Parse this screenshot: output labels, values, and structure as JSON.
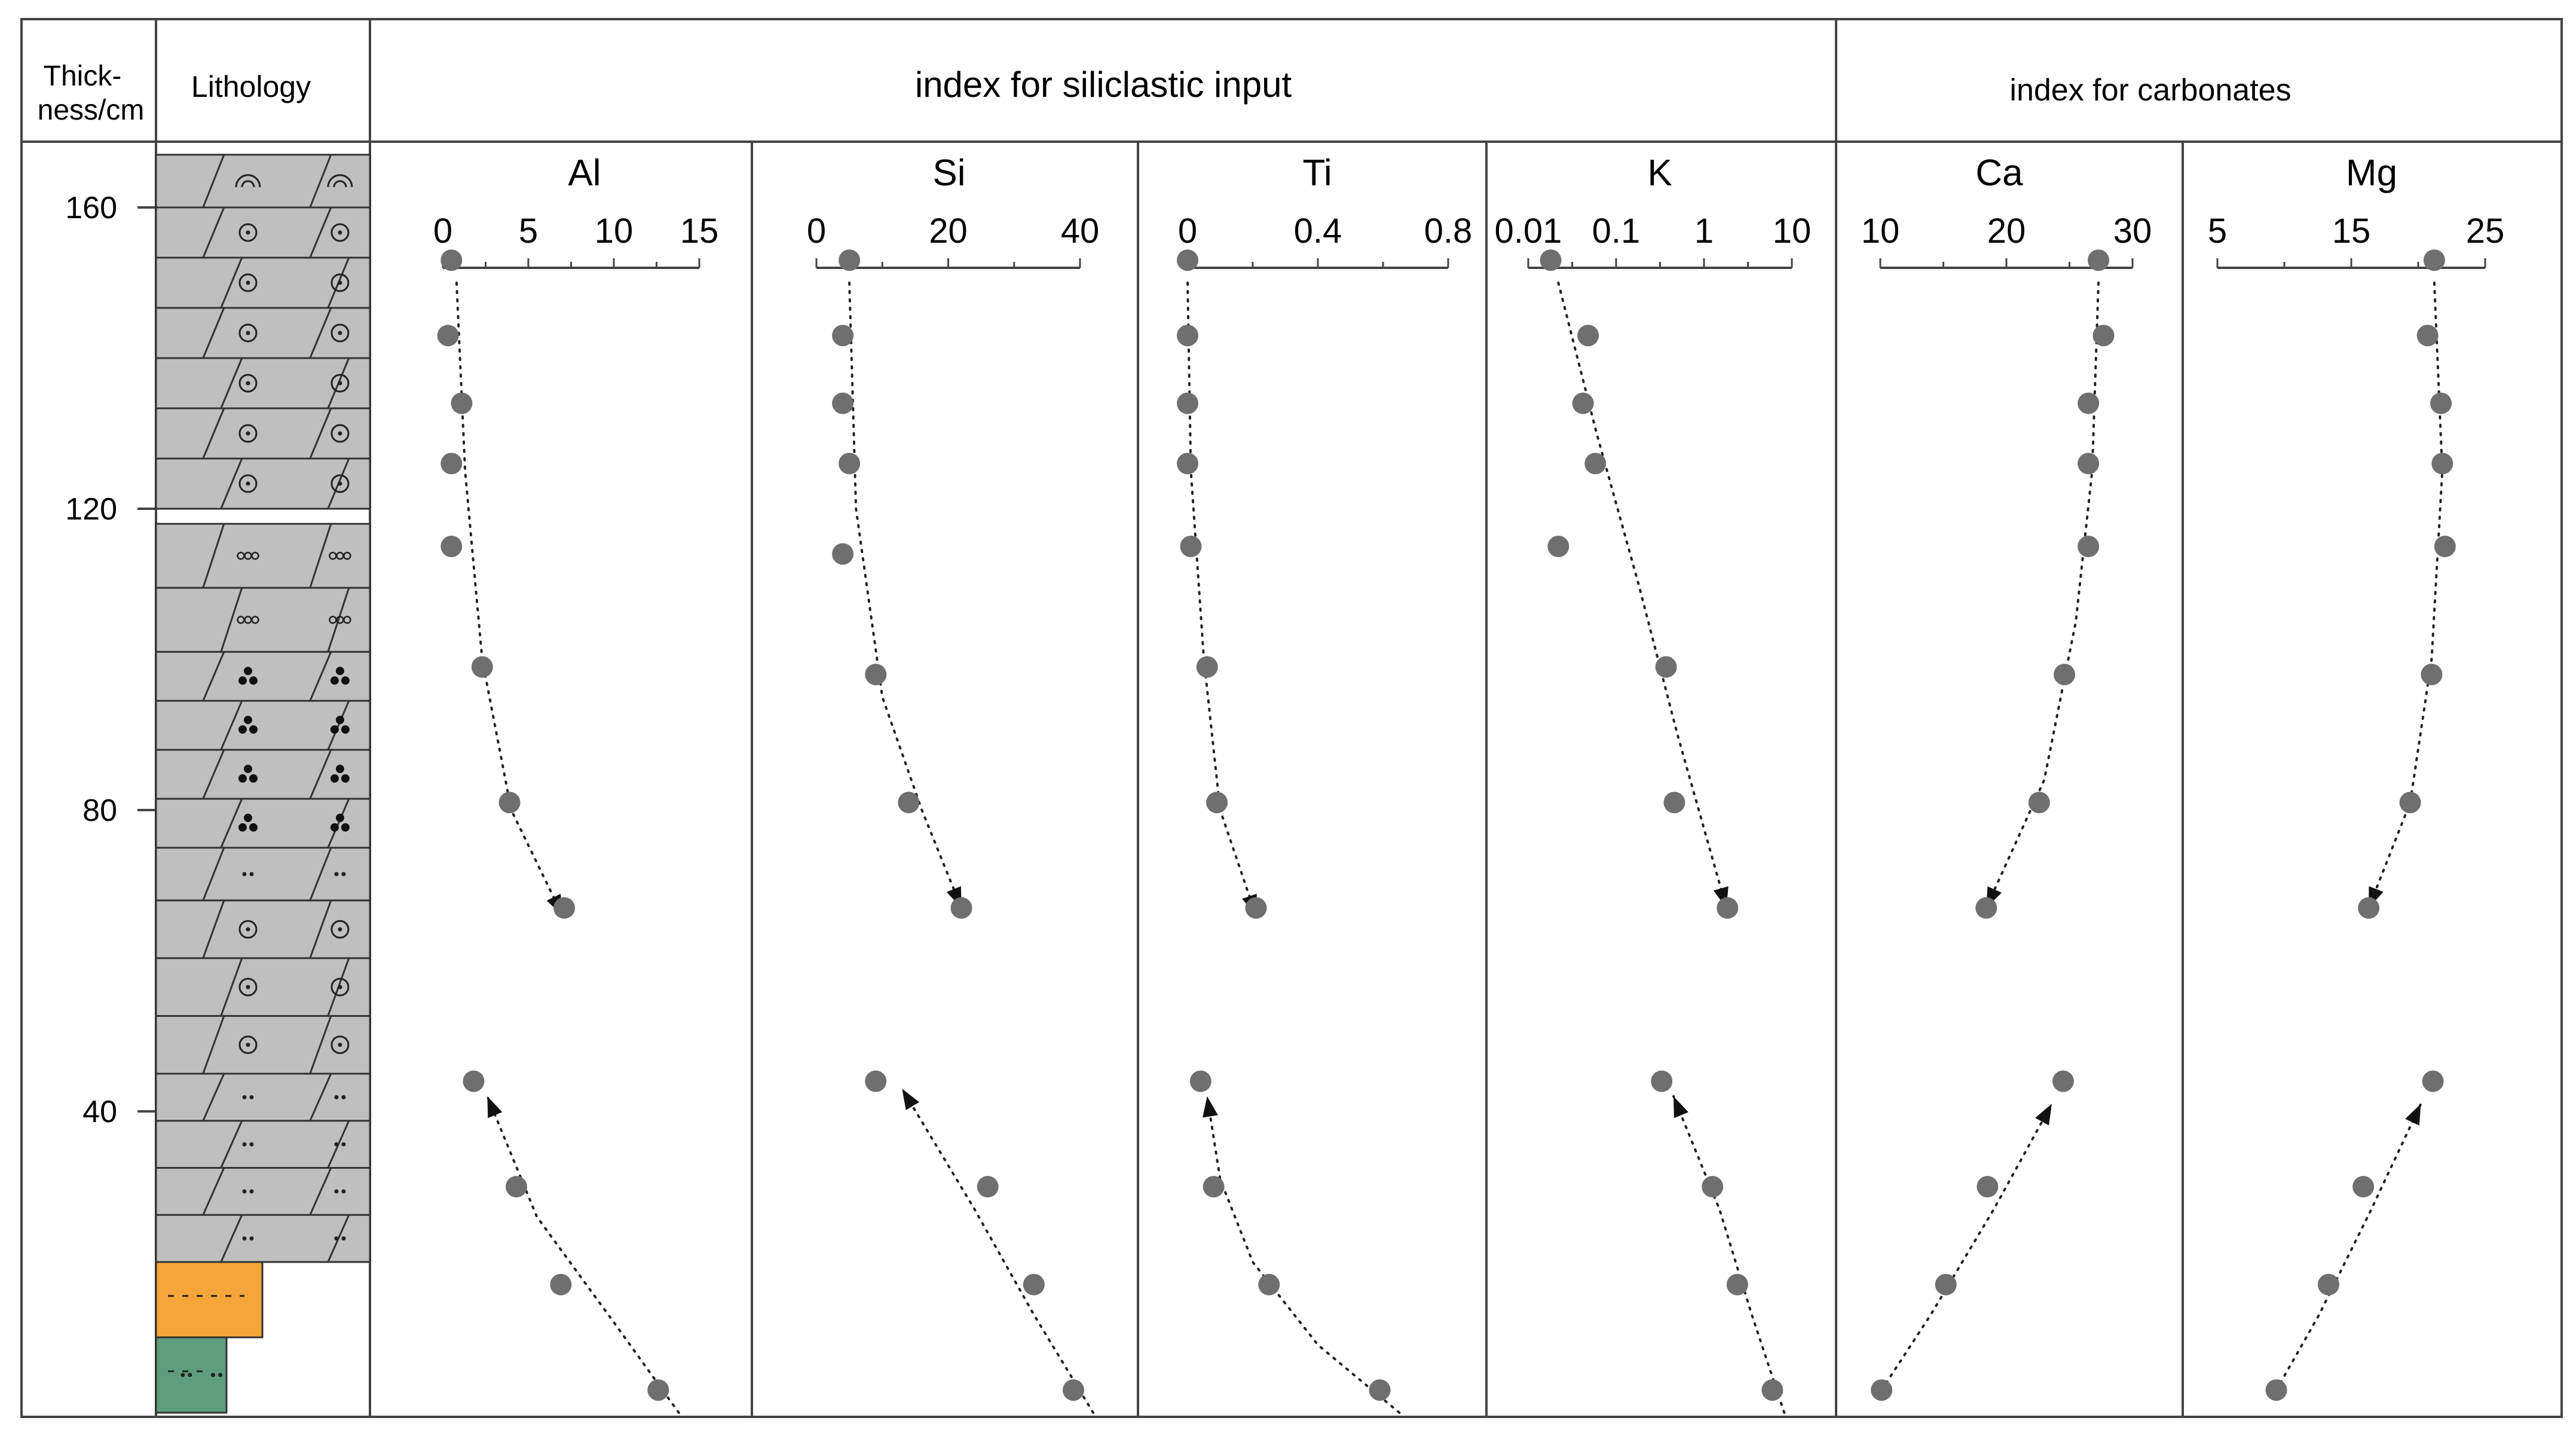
{
  "header": {
    "thickness_label_1": "Thick-",
    "thickness_label_2": "ness/cm",
    "lithology_label": "Lithology",
    "siliclastic_group": "index for siliclastic input",
    "carbonate_group": "index for carbonates"
  },
  "depth_axis": {
    "ticks": [
      {
        "value": 160,
        "label": "160"
      },
      {
        "value": 120,
        "label": "120"
      },
      {
        "value": 80,
        "label": "80"
      },
      {
        "value": 40,
        "label": "40"
      }
    ],
    "range": [
      0,
      169
    ]
  },
  "colors": {
    "limestone_gray": "#bfbfbf",
    "sandstone_orange": "#f5a63a",
    "mudstone_green": "#5e9e7e",
    "point_gray": "#6f6f6f",
    "line": "#222222"
  },
  "lithology_units": [
    {
      "top": 167,
      "bottom": 160,
      "color": "limestone_gray",
      "symbol": "fossil",
      "width": "full"
    },
    {
      "top": 160,
      "bottom": 120,
      "color": "limestone_gray",
      "symbol": "oolitic-bioclastic",
      "width": "full"
    },
    {
      "top": 118,
      "bottom": 101,
      "color": "limestone_gray",
      "symbol": "oolite",
      "width": "full"
    },
    {
      "top": 101,
      "bottom": 75,
      "color": "limestone_gray",
      "symbol": "pellet",
      "width": "full"
    },
    {
      "top": 75,
      "bottom": 68,
      "color": "limestone_gray",
      "symbol": "silty",
      "width": "full"
    },
    {
      "top": 68,
      "bottom": 45,
      "color": "limestone_gray",
      "symbol": "bioclastic",
      "width": "full"
    },
    {
      "top": 45,
      "bottom": 20,
      "color": "limestone_gray",
      "symbol": "silty",
      "width": "full"
    },
    {
      "top": 20,
      "bottom": 10,
      "color": "sandstone_orange",
      "symbol": "sandy",
      "width": "medium"
    },
    {
      "top": 10,
      "bottom": 0,
      "color": "mudstone_green",
      "symbol": "silty",
      "width": "narrow"
    }
  ],
  "chart_data": [
    {
      "type": "scatter",
      "title": "Al",
      "scale": "linear",
      "xlim": [
        0,
        15
      ],
      "ticks": [
        "0",
        "5",
        "10",
        "15"
      ],
      "ylabel": "Thickness/cm",
      "points": [
        {
          "x": 0.5,
          "y": 153
        },
        {
          "x": 0.3,
          "y": 143
        },
        {
          "x": 1.1,
          "y": 134
        },
        {
          "x": 0.5,
          "y": 126
        },
        {
          "x": 0.5,
          "y": 115
        },
        {
          "x": 2.3,
          "y": 99
        },
        {
          "x": 3.9,
          "y": 81
        },
        {
          "x": 7.1,
          "y": 67
        },
        {
          "x": 1.8,
          "y": 44
        },
        {
          "x": 4.3,
          "y": 30
        },
        {
          "x": 6.9,
          "y": 17
        },
        {
          "x": 12.6,
          "y": 3
        }
      ],
      "trends": [
        [
          [
            0.8,
            150
          ],
          [
            1.3,
            125
          ],
          [
            2.3,
            100
          ],
          [
            4.0,
            80
          ],
          [
            7.0,
            66
          ]
        ],
        [
          [
            13.8,
            0
          ],
          [
            10.0,
            12
          ],
          [
            5.5,
            26
          ],
          [
            2.6,
            42
          ]
        ]
      ]
    },
    {
      "type": "scatter",
      "title": "Si",
      "scale": "linear",
      "xlim": [
        0,
        40
      ],
      "ticks": [
        "0",
        "20",
        "40"
      ],
      "ylabel": "Thickness/cm",
      "points": [
        {
          "x": 5,
          "y": 153
        },
        {
          "x": 4,
          "y": 143
        },
        {
          "x": 4,
          "y": 134
        },
        {
          "x": 5,
          "y": 126
        },
        {
          "x": 4,
          "y": 114
        },
        {
          "x": 9,
          "y": 98
        },
        {
          "x": 14,
          "y": 81
        },
        {
          "x": 22,
          "y": 67
        },
        {
          "x": 9,
          "y": 44
        },
        {
          "x": 26,
          "y": 30
        },
        {
          "x": 33,
          "y": 17
        },
        {
          "x": 39,
          "y": 3
        }
      ],
      "trends": [
        [
          [
            5,
            150
          ],
          [
            6,
            120
          ],
          [
            10,
            95
          ],
          [
            16,
            80
          ],
          [
            22,
            67
          ]
        ],
        [
          [
            42,
            0
          ],
          [
            33,
            13
          ],
          [
            24,
            27
          ],
          [
            13,
            43
          ]
        ]
      ]
    },
    {
      "type": "scatter",
      "title": "Ti",
      "scale": "linear",
      "xlim": [
        0,
        0.8
      ],
      "ticks": [
        "0",
        "0.4",
        "0.8"
      ],
      "ylabel": "Thickness/cm",
      "points": [
        {
          "x": 0.0,
          "y": 153
        },
        {
          "x": 0.0,
          "y": 143
        },
        {
          "x": 0.0,
          "y": 134
        },
        {
          "x": 0.0,
          "y": 126
        },
        {
          "x": 0.01,
          "y": 115
        },
        {
          "x": 0.06,
          "y": 99
        },
        {
          "x": 0.09,
          "y": 81
        },
        {
          "x": 0.21,
          "y": 67
        },
        {
          "x": 0.04,
          "y": 44
        },
        {
          "x": 0.08,
          "y": 30
        },
        {
          "x": 0.25,
          "y": 17
        },
        {
          "x": 0.59,
          "y": 3
        }
      ],
      "trends": [
        [
          [
            0.0,
            150
          ],
          [
            0.01,
            125
          ],
          [
            0.05,
            100
          ],
          [
            0.1,
            80
          ],
          [
            0.21,
            66
          ]
        ],
        [
          [
            0.65,
            0
          ],
          [
            0.4,
            9
          ],
          [
            0.2,
            20
          ],
          [
            0.1,
            31
          ],
          [
            0.06,
            42
          ]
        ]
      ]
    },
    {
      "type": "scatter",
      "title": "K",
      "scale": "log",
      "xlim": [
        0.01,
        10
      ],
      "ticks": [
        "0.01",
        "0.1",
        "1",
        "10"
      ],
      "ylabel": "Thickness/cm",
      "points": [
        {
          "x": 0.018,
          "y": 153
        },
        {
          "x": 0.048,
          "y": 143
        },
        {
          "x": 0.042,
          "y": 134
        },
        {
          "x": 0.058,
          "y": 126
        },
        {
          "x": 0.022,
          "y": 115
        },
        {
          "x": 0.37,
          "y": 99
        },
        {
          "x": 0.46,
          "y": 81
        },
        {
          "x": 1.85,
          "y": 67
        },
        {
          "x": 0.33,
          "y": 44
        },
        {
          "x": 1.25,
          "y": 30
        },
        {
          "x": 2.4,
          "y": 17
        },
        {
          "x": 6.0,
          "y": 3
        }
      ],
      "trends": [
        [
          [
            0.022,
            150
          ],
          [
            0.06,
            130
          ],
          [
            0.18,
            110
          ],
          [
            0.5,
            90
          ],
          [
            1.8,
            67
          ]
        ],
        [
          [
            8.2,
            0
          ],
          [
            3.5,
            13
          ],
          [
            1.5,
            27
          ],
          [
            0.45,
            42
          ]
        ]
      ]
    },
    {
      "type": "scatter",
      "title": "Ca",
      "scale": "linear",
      "xlim": [
        10,
        30
      ],
      "ticks": [
        "10",
        "20",
        "30"
      ],
      "ylabel": "Thickness/cm",
      "points": [
        {
          "x": 27.3,
          "y": 153
        },
        {
          "x": 27.7,
          "y": 143
        },
        {
          "x": 26.5,
          "y": 134
        },
        {
          "x": 26.5,
          "y": 126
        },
        {
          "x": 26.5,
          "y": 115
        },
        {
          "x": 24.6,
          "y": 98
        },
        {
          "x": 22.6,
          "y": 81
        },
        {
          "x": 18.4,
          "y": 67
        },
        {
          "x": 24.5,
          "y": 44
        },
        {
          "x": 18.5,
          "y": 30
        },
        {
          "x": 15.2,
          "y": 17
        },
        {
          "x": 10.1,
          "y": 3
        }
      ],
      "trends": [
        [
          [
            27.3,
            150
          ],
          [
            26.8,
            125
          ],
          [
            25.5,
            105
          ],
          [
            23.0,
            84
          ],
          [
            18.4,
            67
          ]
        ],
        [
          [
            10.1,
            3
          ],
          [
            14,
            13
          ],
          [
            19,
            27
          ],
          [
            23.6,
            41
          ]
        ]
      ]
    },
    {
      "type": "scatter",
      "title": "Mg",
      "scale": "linear",
      "xlim": [
        5,
        25
      ],
      "ticks": [
        "5",
        "15",
        "25"
      ],
      "ylabel": "Thickness/cm",
      "points": [
        {
          "x": 21.2,
          "y": 153
        },
        {
          "x": 20.7,
          "y": 143
        },
        {
          "x": 21.7,
          "y": 134
        },
        {
          "x": 21.8,
          "y": 126
        },
        {
          "x": 22.0,
          "y": 115
        },
        {
          "x": 21.0,
          "y": 98
        },
        {
          "x": 19.4,
          "y": 81
        },
        {
          "x": 16.3,
          "y": 67
        },
        {
          "x": 21.1,
          "y": 44
        },
        {
          "x": 15.9,
          "y": 30
        },
        {
          "x": 13.3,
          "y": 17
        },
        {
          "x": 9.4,
          "y": 3
        }
      ],
      "trends": [
        [
          [
            21.2,
            150
          ],
          [
            21.8,
            125
          ],
          [
            21.0,
            100
          ],
          [
            19.4,
            81
          ],
          [
            16.3,
            67
          ]
        ],
        [
          [
            9.4,
            3
          ],
          [
            12.6,
            13
          ],
          [
            16.5,
            27
          ],
          [
            20.2,
            41
          ]
        ]
      ]
    }
  ]
}
